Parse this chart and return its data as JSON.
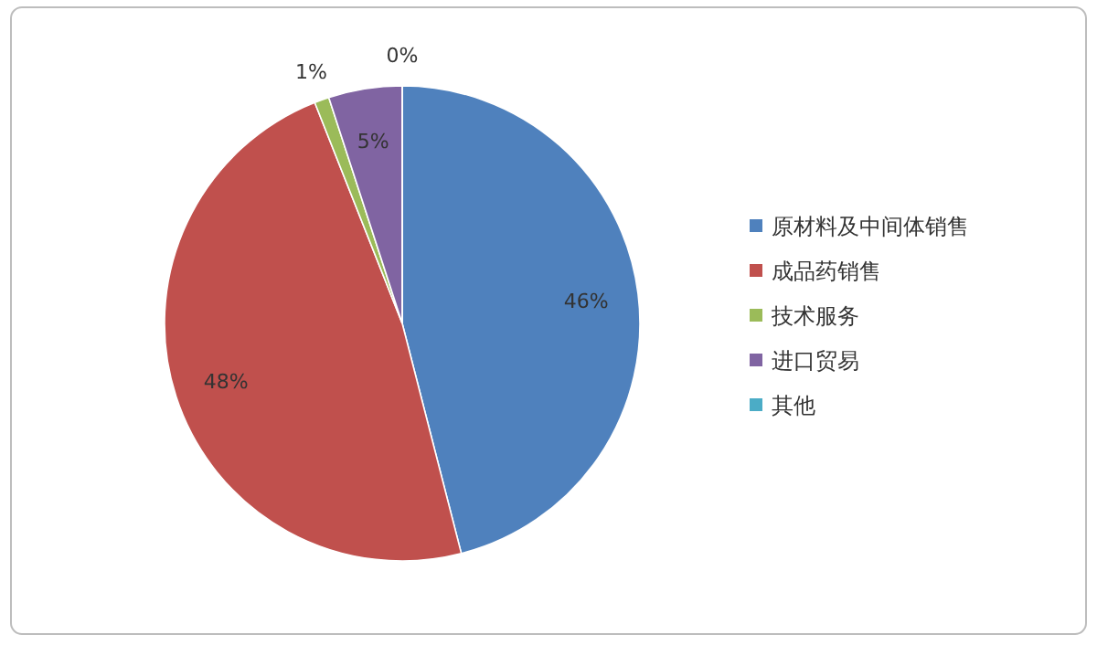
{
  "chart_data": {
    "type": "pie",
    "categories": [
      "原材料及中间体销售",
      "成品药销售",
      "技术服务",
      "进口贸易",
      "其他"
    ],
    "values": [
      46,
      48,
      1,
      5,
      0
    ],
    "colors": [
      "#4f81bd",
      "#c0504d",
      "#9bbb59",
      "#8064a2",
      "#4bacc6"
    ],
    "value_labels": [
      "46%",
      "48%",
      "1%",
      "5%",
      "0%"
    ],
    "legend": "right"
  }
}
